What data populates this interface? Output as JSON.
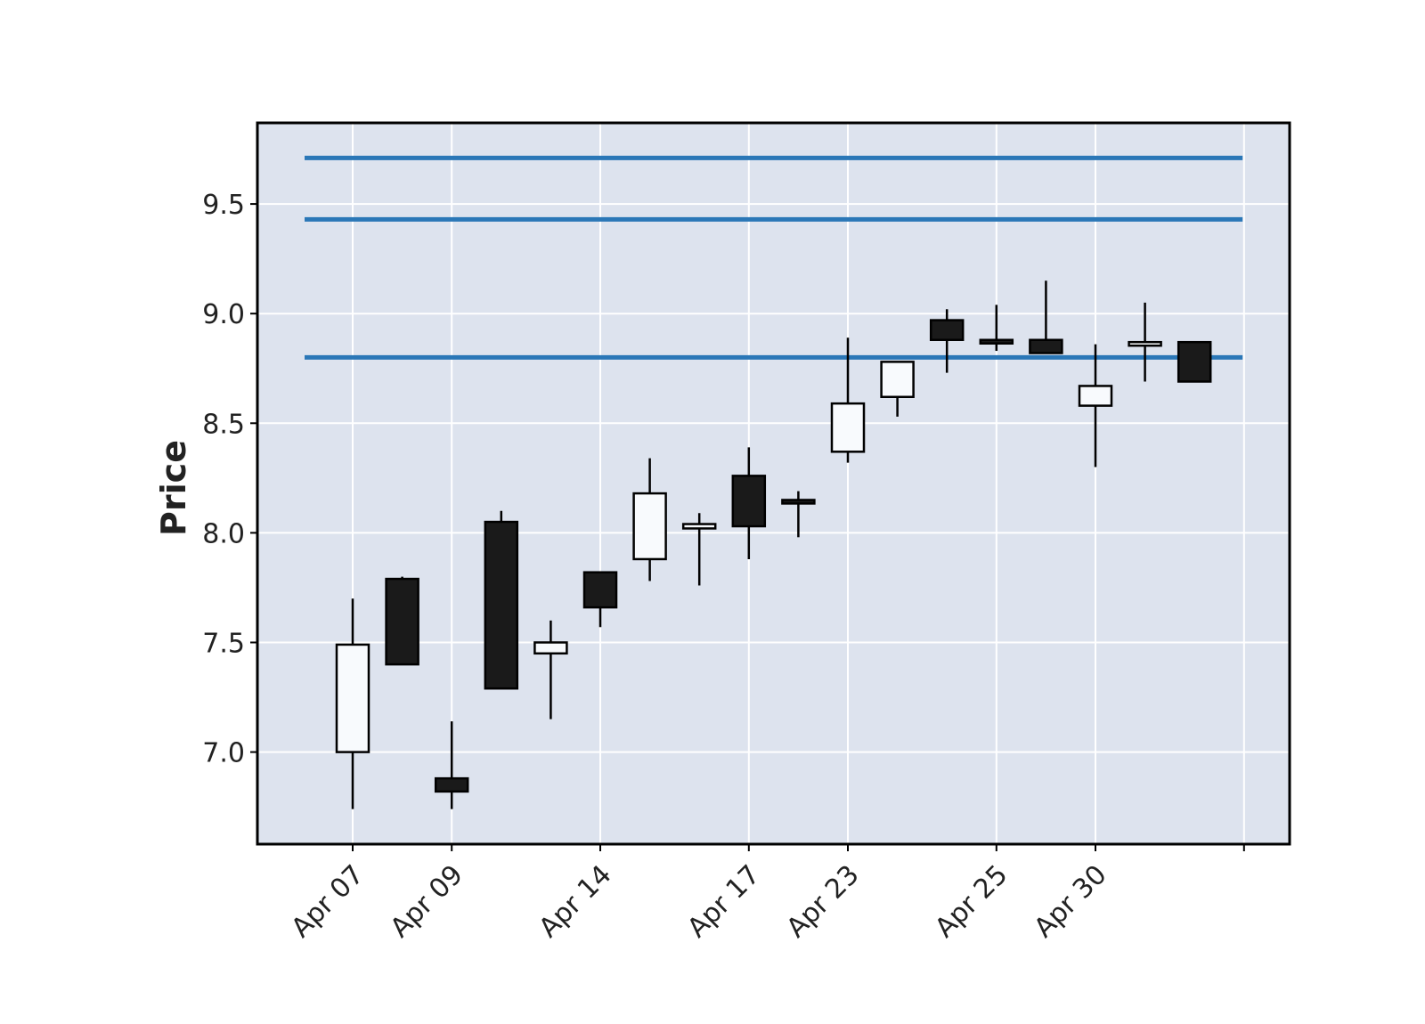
{
  "chart_data": {
    "type": "candlestick",
    "title": "",
    "xlabel": "",
    "ylabel": "Price",
    "ylim": [
      6.58,
      9.87
    ],
    "yticks": [
      7.0,
      7.5,
      8.0,
      8.5,
      9.0,
      9.5
    ],
    "ytick_labels": [
      "7.0",
      "7.5",
      "8.0",
      "8.5",
      "9.0",
      "9.5"
    ],
    "xtick_indices": [
      0,
      2,
      5,
      8,
      10,
      13,
      15,
      18
    ],
    "xtick_labels": [
      "Apr 07",
      "Apr 09",
      "Apr 14",
      "Apr 17",
      "Apr 23",
      "Apr 25",
      "Apr 30",
      ""
    ],
    "grid": true,
    "colors": {
      "background": "#dde3ee",
      "grid": "#ffffff",
      "up_body": "#f8fafd",
      "down_body": "#1a1a1a",
      "edge": "#000000",
      "hline": "#2a77b7"
    },
    "candles": [
      {
        "open": 7.0,
        "high": 7.7,
        "low": 6.74,
        "close": 7.49
      },
      {
        "open": 7.79,
        "high": 7.8,
        "low": 7.4,
        "close": 7.4
      },
      {
        "open": 6.88,
        "high": 7.14,
        "low": 6.74,
        "close": 6.82
      },
      {
        "open": 8.05,
        "high": 8.1,
        "low": 7.29,
        "close": 7.29
      },
      {
        "open": 7.45,
        "high": 7.6,
        "low": 7.15,
        "close": 7.5
      },
      {
        "open": 7.82,
        "high": 7.82,
        "low": 7.57,
        "close": 7.66
      },
      {
        "open": 7.88,
        "high": 8.34,
        "low": 7.78,
        "close": 8.18
      },
      {
        "open": 8.02,
        "high": 8.09,
        "low": 7.76,
        "close": 8.04
      },
      {
        "open": 8.26,
        "high": 8.39,
        "low": 7.88,
        "close": 8.03
      },
      {
        "open": 8.15,
        "high": 8.19,
        "low": 7.98,
        "close": 8.14
      },
      {
        "open": 8.37,
        "high": 8.89,
        "low": 8.32,
        "close": 8.59
      },
      {
        "open": 8.62,
        "high": 8.78,
        "low": 8.53,
        "close": 8.78
      },
      {
        "open": 8.97,
        "high": 9.02,
        "low": 8.73,
        "close": 8.88
      },
      {
        "open": 8.88,
        "high": 9.04,
        "low": 8.83,
        "close": 8.87
      },
      {
        "open": 8.88,
        "high": 9.15,
        "low": 8.82,
        "close": 8.82
      },
      {
        "open": 8.58,
        "high": 8.86,
        "low": 8.3,
        "close": 8.67
      },
      {
        "open": 8.87,
        "high": 9.05,
        "low": 8.69,
        "close": 8.87
      },
      {
        "open": 8.87,
        "high": 8.87,
        "low": 8.69,
        "close": 8.69
      }
    ],
    "hlines": [
      9.71,
      9.43,
      8.8
    ]
  }
}
